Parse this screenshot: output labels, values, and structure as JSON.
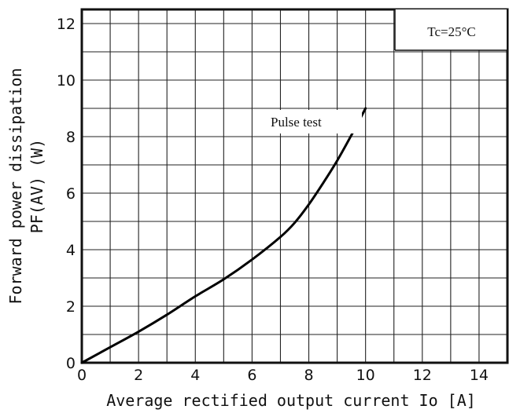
{
  "chart_data": {
    "type": "line",
    "title": "",
    "xlabel": "Average rectified output current Io [A]",
    "ylabel_line1": "Forward power dissipation",
    "ylabel_line2": "PF(AV)  (W)",
    "xlim": [
      0,
      15
    ],
    "ylim": [
      0,
      12.5
    ],
    "x_ticks": [
      0,
      2,
      4,
      6,
      8,
      10,
      12,
      14
    ],
    "y_ticks": [
      0,
      2,
      4,
      6,
      8,
      10,
      12
    ],
    "grid": true,
    "grid_step": 1,
    "annotations": {
      "condition": "Tc=25°C",
      "curve_label": "Pulse test"
    },
    "series": [
      {
        "x": [
          0,
          1,
          2,
          3,
          4,
          5,
          6,
          7,
          7.5,
          8,
          8.5,
          9,
          9.5,
          10
        ],
        "y": [
          0,
          0.55,
          1.1,
          1.7,
          2.35,
          2.95,
          3.65,
          4.45,
          4.95,
          5.6,
          6.35,
          7.15,
          8.05,
          9.0
        ]
      }
    ]
  }
}
